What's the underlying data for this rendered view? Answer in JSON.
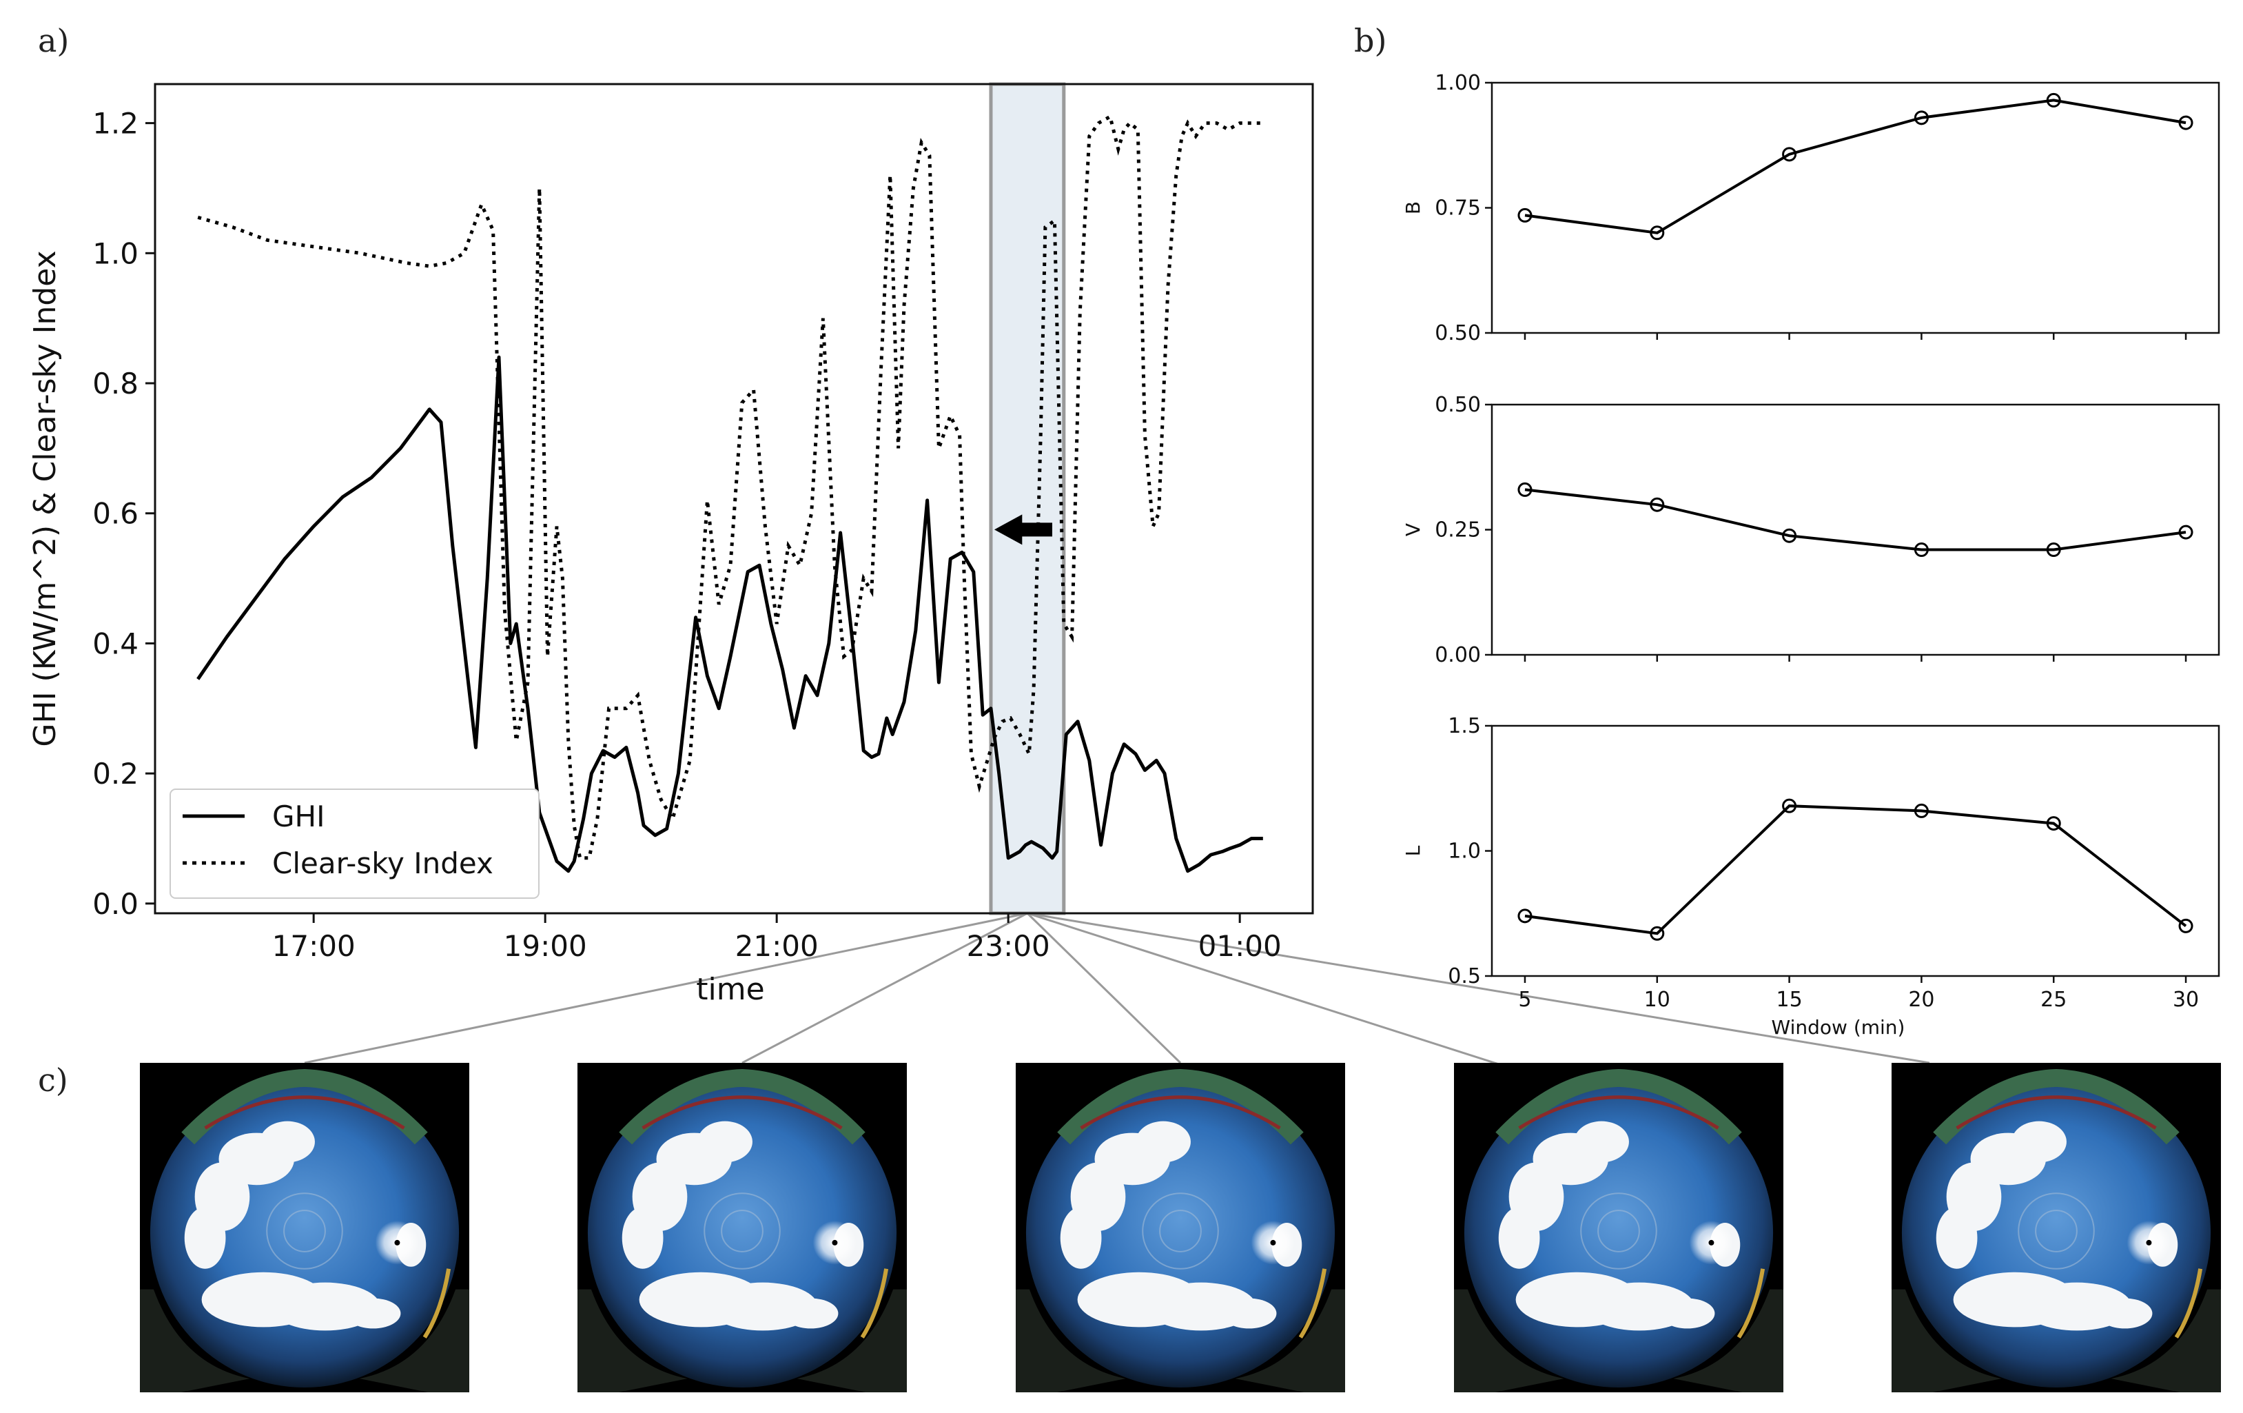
{
  "panel_labels": [
    "a)",
    "b)",
    "c)"
  ],
  "chart_data": [
    {
      "type": "line",
      "panel": "a)",
      "xlabel": "time",
      "ylabel": "GHI (KW/m^2) & Clear-sky Index",
      "x_tick_labels": [
        "17:00",
        "19:00",
        "21:00",
        "23:00",
        "01:00"
      ],
      "x_tick_hours": [
        17,
        19,
        21,
        23,
        25
      ],
      "xlim_hours": [
        15.63,
        25.63
      ],
      "ylim": [
        -0.015,
        1.26
      ],
      "y_ticks": [
        0.0,
        0.2,
        0.4,
        0.6,
        0.8,
        1.0,
        1.2
      ],
      "y_tick_labels": [
        "0.0",
        "0.2",
        "0.4",
        "0.6",
        "0.8",
        "1.0",
        "1.2"
      ],
      "legend_position": "lower-left",
      "highlight_window_hours": [
        22.85,
        23.48
      ],
      "series": [
        {
          "name": "GHI",
          "style": "solid",
          "x": [
            16.0,
            16.25,
            16.5,
            16.75,
            17.0,
            17.25,
            17.5,
            17.75,
            18.0,
            18.1,
            18.2,
            18.4,
            18.5,
            18.6,
            18.7,
            18.75,
            18.85,
            18.95,
            19.1,
            19.2,
            19.25,
            19.33,
            19.4,
            19.5,
            19.6,
            19.7,
            19.8,
            19.85,
            19.95,
            20.05,
            20.15,
            20.3,
            20.4,
            20.5,
            20.6,
            20.75,
            20.85,
            20.95,
            21.05,
            21.15,
            21.25,
            21.35,
            21.45,
            21.55,
            21.65,
            21.75,
            21.82,
            21.88,
            21.95,
            22.0,
            22.1,
            22.2,
            22.3,
            22.4,
            22.5,
            22.6,
            22.7,
            22.78,
            22.85,
            22.92,
            23.0,
            23.1,
            23.15,
            23.2,
            23.3,
            23.38,
            23.42,
            23.5,
            23.6,
            23.7,
            23.8,
            23.9,
            24.0,
            24.1,
            24.18,
            24.28,
            24.35,
            24.45,
            24.55,
            24.65,
            24.75,
            24.85,
            24.92,
            25.0,
            25.1,
            25.2
          ],
          "y": [
            0.345,
            0.41,
            0.47,
            0.53,
            0.58,
            0.625,
            0.655,
            0.7,
            0.76,
            0.74,
            0.55,
            0.24,
            0.5,
            0.84,
            0.4,
            0.43,
            0.3,
            0.14,
            0.065,
            0.05,
            0.065,
            0.13,
            0.2,
            0.235,
            0.225,
            0.24,
            0.17,
            0.12,
            0.105,
            0.115,
            0.2,
            0.44,
            0.35,
            0.3,
            0.38,
            0.51,
            0.52,
            0.43,
            0.36,
            0.27,
            0.35,
            0.32,
            0.4,
            0.57,
            0.41,
            0.235,
            0.225,
            0.23,
            0.285,
            0.26,
            0.31,
            0.42,
            0.62,
            0.34,
            0.53,
            0.54,
            0.51,
            0.29,
            0.3,
            0.2,
            0.07,
            0.08,
            0.09,
            0.095,
            0.085,
            0.07,
            0.08,
            0.26,
            0.28,
            0.22,
            0.09,
            0.2,
            0.245,
            0.23,
            0.205,
            0.22,
            0.2,
            0.1,
            0.05,
            0.06,
            0.075,
            0.08,
            0.085,
            0.09,
            0.1,
            0.1
          ]
        },
        {
          "name": "Clear-sky Index",
          "style": "dotted",
          "x": [
            16.0,
            16.3,
            16.6,
            17.0,
            17.4,
            17.8,
            18.0,
            18.15,
            18.3,
            18.45,
            18.55,
            18.65,
            18.75,
            18.85,
            18.95,
            19.02,
            19.1,
            19.15,
            19.2,
            19.25,
            19.3,
            19.38,
            19.45,
            19.55,
            19.7,
            19.8,
            19.9,
            20.0,
            20.1,
            20.25,
            20.4,
            20.5,
            20.6,
            20.7,
            20.8,
            20.9,
            21.0,
            21.1,
            21.2,
            21.3,
            21.4,
            21.5,
            21.58,
            21.65,
            21.75,
            21.82,
            21.9,
            21.98,
            22.05,
            22.1,
            22.18,
            22.25,
            22.32,
            22.4,
            22.5,
            22.58,
            22.62,
            22.68,
            22.75,
            22.82,
            22.88,
            22.95,
            23.02,
            23.1,
            23.18,
            23.22,
            23.28,
            23.32,
            23.4,
            23.48,
            23.55,
            23.62,
            23.7,
            23.78,
            23.88,
            23.95,
            24.0,
            24.05,
            24.12,
            24.18,
            24.25,
            24.3,
            24.38,
            24.45,
            24.5,
            24.55,
            24.62,
            24.7,
            24.8,
            24.9,
            25.0,
            25.08,
            25.15,
            25.2
          ],
          "y": [
            1.055,
            1.04,
            1.02,
            1.01,
            1.0,
            0.985,
            0.98,
            0.985,
            1.0,
            1.075,
            1.035,
            0.45,
            0.25,
            0.34,
            1.1,
            0.38,
            0.58,
            0.5,
            0.25,
            0.12,
            0.07,
            0.07,
            0.13,
            0.3,
            0.3,
            0.32,
            0.22,
            0.16,
            0.13,
            0.22,
            0.62,
            0.46,
            0.52,
            0.77,
            0.79,
            0.58,
            0.43,
            0.55,
            0.52,
            0.6,
            0.9,
            0.52,
            0.38,
            0.39,
            0.5,
            0.48,
            0.82,
            1.12,
            0.7,
            0.92,
            1.1,
            1.17,
            1.15,
            0.7,
            0.75,
            0.72,
            0.5,
            0.23,
            0.18,
            0.22,
            0.255,
            0.28,
            0.285,
            0.26,
            0.23,
            0.33,
            0.72,
            1.04,
            1.05,
            0.43,
            0.41,
            0.91,
            1.18,
            1.2,
            1.21,
            1.16,
            1.19,
            1.2,
            1.19,
            0.72,
            0.58,
            0.6,
            0.95,
            1.12,
            1.18,
            1.2,
            1.18,
            1.2,
            1.2,
            1.19,
            1.2,
            1.2,
            1.2,
            1.2
          ]
        }
      ]
    },
    {
      "type": "line",
      "panel": "b)",
      "ylabel": "B",
      "x": [
        5,
        10,
        15,
        20,
        25,
        30
      ],
      "y": [
        0.735,
        0.7,
        0.857,
        0.93,
        0.965,
        0.92
      ],
      "xlim": [
        3.75,
        31.25
      ],
      "ylim": [
        0.5,
        1.0
      ],
      "y_ticks": [
        0.5,
        0.75,
        1.0
      ],
      "y_tick_labels": [
        "0.50",
        "0.75",
        "1.00"
      ],
      "marker": "open-circle"
    },
    {
      "type": "line",
      "panel": "b)",
      "ylabel": "V",
      "x": [
        5,
        10,
        15,
        20,
        25,
        30
      ],
      "y": [
        0.33,
        0.3,
        0.238,
        0.21,
        0.21,
        0.245
      ],
      "xlim": [
        3.75,
        31.25
      ],
      "ylim": [
        0.0,
        0.5
      ],
      "y_ticks": [
        0.0,
        0.25,
        0.5
      ],
      "y_tick_labels": [
        "0.00",
        "0.25",
        "0.50"
      ],
      "marker": "open-circle"
    },
    {
      "type": "line",
      "panel": "b)",
      "ylabel": "L",
      "xlabel": "Window (min)",
      "x": [
        5,
        10,
        15,
        20,
        25,
        30
      ],
      "x_tick_labels": [
        "5",
        "10",
        "15",
        "20",
        "25",
        "30"
      ],
      "y": [
        0.74,
        0.67,
        1.18,
        1.16,
        1.11,
        0.7
      ],
      "xlim": [
        3.75,
        31.25
      ],
      "ylim": [
        0.5,
        1.5
      ],
      "y_ticks": [
        0.5,
        1.0,
        1.5
      ],
      "y_tick_labels": [
        "0.5",
        "1.0",
        "1.5"
      ],
      "marker": "open-circle"
    }
  ],
  "sky_images": [
    {
      "name": "sky-image-1"
    },
    {
      "name": "sky-image-2"
    },
    {
      "name": "sky-image-3"
    },
    {
      "name": "sky-image-4"
    },
    {
      "name": "sky-image-5"
    }
  ],
  "colors": {
    "line": "#000000",
    "highlight_fill": "#e6edf3",
    "highlight_stroke": "#9a9a9a",
    "connector": "#9a9a9a",
    "sky": "#2f74c0",
    "cloud": "#f2f4f7"
  }
}
